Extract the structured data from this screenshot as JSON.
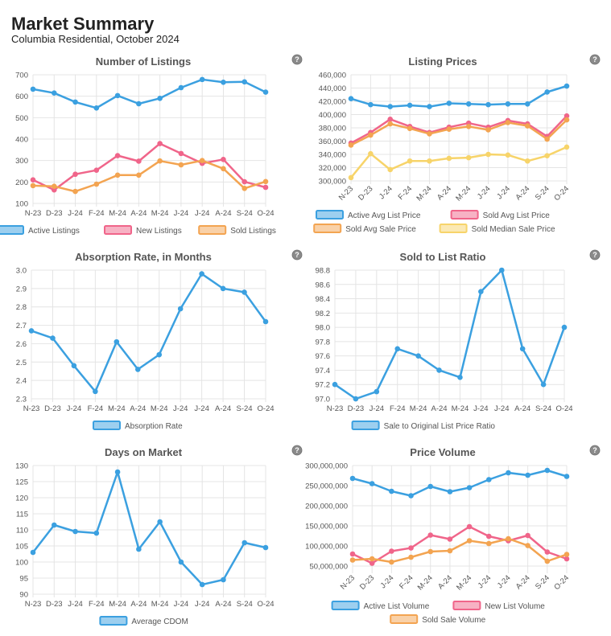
{
  "header": {
    "title": "Market Summary",
    "subtitle": "Columbia Residential, October 2024",
    "help_glyph": "?"
  },
  "icons": {
    "help": "help-icon"
  },
  "chart_data": [
    {
      "id": "listings",
      "type": "line",
      "title": "Number of Listings",
      "categories": [
        "N-23",
        "D-23",
        "J-24",
        "F-24",
        "M-24",
        "A-24",
        "M-24",
        "J-24",
        "J-24",
        "A-24",
        "S-24",
        "O-24"
      ],
      "x_rotated": false,
      "ylim": [
        100,
        700
      ],
      "yticks": [
        "100",
        "200",
        "300",
        "400",
        "500",
        "600",
        "700"
      ],
      "yticks_values": [
        100,
        200,
        300,
        400,
        500,
        600,
        700
      ],
      "grid": true,
      "legend_position": "bottom",
      "series": [
        {
          "name": "Active Listings",
          "color": "#3ba0e0",
          "values": [
            633,
            615,
            573,
            545,
            603,
            565,
            590,
            640,
            678,
            665,
            667,
            619
          ]
        },
        {
          "name": "New Listings",
          "color": "#f0658a",
          "values": [
            210,
            163,
            236,
            255,
            323,
            297,
            379,
            333,
            287,
            305,
            201,
            175
          ]
        },
        {
          "name": "Sold Listings",
          "color": "#f3a451",
          "values": [
            183,
            180,
            156,
            190,
            232,
            232,
            298,
            280,
            300,
            262,
            170,
            202
          ]
        }
      ]
    },
    {
      "id": "prices",
      "type": "line",
      "title": "Listing Prices",
      "categories": [
        "N-23",
        "D-23",
        "J-24",
        "F-24",
        "M-24",
        "A-24",
        "M-24",
        "J-24",
        "J-24",
        "A-24",
        "S-24",
        "O-24"
      ],
      "x_rotated": true,
      "ylim": [
        300000,
        460000
      ],
      "yticks": [
        "300,000",
        "320,000",
        "340,000",
        "360,000",
        "380,000",
        "400,000",
        "420,000",
        "440,000",
        "460,000"
      ],
      "yticks_values": [
        300000,
        320000,
        340000,
        360000,
        380000,
        400000,
        420000,
        440000,
        460000
      ],
      "grid": true,
      "legend_position": "bottom",
      "series": [
        {
          "name": "Active Avg List Price",
          "color": "#3ba0e0",
          "values": [
            424000,
            415000,
            412000,
            414000,
            412000,
            417000,
            416000,
            415000,
            416000,
            416000,
            434000,
            443000
          ]
        },
        {
          "name": "Sold Avg List Price",
          "color": "#f0658a",
          "values": [
            357000,
            373000,
            393000,
            382000,
            373000,
            381000,
            387000,
            381000,
            391000,
            386000,
            367000,
            398000
          ]
        },
        {
          "name": "Sold Avg Sale Price",
          "color": "#f3a451",
          "values": [
            354000,
            369000,
            386000,
            379000,
            371000,
            378000,
            382000,
            377000,
            388000,
            383000,
            363000,
            392000
          ]
        },
        {
          "name": "Sold Median Sale Price",
          "color": "#f7d46a",
          "values": [
            305000,
            341000,
            317000,
            330000,
            330000,
            334000,
            335000,
            340000,
            339000,
            330000,
            338000,
            351000
          ]
        }
      ]
    },
    {
      "id": "absorption",
      "type": "line",
      "title": "Absorption Rate, in Months",
      "categories": [
        "N-23",
        "D-23",
        "J-24",
        "F-24",
        "M-24",
        "A-24",
        "M-24",
        "J-24",
        "J-24",
        "A-24",
        "S-24",
        "O-24"
      ],
      "x_rotated": false,
      "ylim": [
        2.3,
        3.0
      ],
      "yticks": [
        "2.3",
        "2.4",
        "2.5",
        "2.6",
        "2.7",
        "2.8",
        "2.9",
        "3.0"
      ],
      "yticks_values": [
        2.3,
        2.4,
        2.5,
        2.6,
        2.7,
        2.8,
        2.9,
        3.0
      ],
      "grid": true,
      "legend_position": "bottom",
      "series": [
        {
          "name": "Absorption Rate",
          "color": "#3ba0e0",
          "values": [
            2.67,
            2.63,
            2.48,
            2.34,
            2.61,
            2.46,
            2.54,
            2.79,
            2.98,
            2.9,
            2.88,
            2.72
          ]
        }
      ]
    },
    {
      "id": "sold_to_list",
      "type": "line",
      "title": "Sold to List Ratio",
      "categories": [
        "N-23",
        "D-23",
        "J-24",
        "F-24",
        "M-24",
        "A-24",
        "M-24",
        "J-24",
        "J-24",
        "A-24",
        "S-24",
        "O-24"
      ],
      "x_rotated": false,
      "ylim": [
        97.0,
        98.8
      ],
      "yticks": [
        "97.0",
        "97.2",
        "97.4",
        "97.6",
        "97.8",
        "98.0",
        "98.2",
        "98.4",
        "98.6",
        "98.8"
      ],
      "yticks_values": [
        97.0,
        97.2,
        97.4,
        97.6,
        97.8,
        98.0,
        98.2,
        98.4,
        98.6,
        98.8
      ],
      "grid": true,
      "legend_position": "bottom",
      "series": [
        {
          "name": "Sale to Original List Price Ratio",
          "color": "#3ba0e0",
          "values": [
            97.2,
            97.0,
            97.1,
            97.7,
            97.6,
            97.4,
            97.3,
            98.5,
            98.8,
            97.7,
            97.2,
            98.0
          ]
        }
      ]
    },
    {
      "id": "dom",
      "type": "line",
      "title": "Days on Market",
      "categories": [
        "N-23",
        "D-23",
        "J-24",
        "F-24",
        "M-24",
        "A-24",
        "M-24",
        "J-24",
        "J-24",
        "A-24",
        "S-24",
        "O-24"
      ],
      "x_rotated": false,
      "ylim": [
        90,
        130
      ],
      "yticks": [
        "90",
        "95",
        "100",
        "105",
        "110",
        "115",
        "120",
        "125",
        "130"
      ],
      "yticks_values": [
        90,
        95,
        100,
        105,
        110,
        115,
        120,
        125,
        130
      ],
      "grid": true,
      "legend_position": "bottom",
      "series": [
        {
          "name": "Average CDOM",
          "color": "#3ba0e0",
          "values": [
            103,
            111.5,
            109.5,
            109,
            128,
            104,
            112.5,
            100,
            93,
            94.5,
            106,
            104.5
          ]
        }
      ]
    },
    {
      "id": "volume",
      "type": "line",
      "title": "Price Volume",
      "categories": [
        "N-23",
        "D-23",
        "J-24",
        "F-24",
        "M-24",
        "A-24",
        "M-24",
        "J-24",
        "J-24",
        "A-24",
        "S-24",
        "O-24"
      ],
      "x_rotated": true,
      "ylim": [
        40000000,
        300000000
      ],
      "yticks": [
        "50,000,000",
        "100,000,000",
        "150,000,000",
        "200,000,000",
        "250,000,000",
        "300,000,000"
      ],
      "yticks_values": [
        50000000,
        100000000,
        150000000,
        200000000,
        250000000,
        300000000
      ],
      "grid": true,
      "legend_position": "bottom",
      "series": [
        {
          "name": "Active List Volume",
          "color": "#3ba0e0",
          "values": [
            268000000,
            255000000,
            236000000,
            225000000,
            248000000,
            235000000,
            245000000,
            265000000,
            282000000,
            276000000,
            288000000,
            273000000
          ]
        },
        {
          "name": "New List Volume",
          "color": "#f0658a",
          "values": [
            80000000,
            57000000,
            87000000,
            95000000,
            127000000,
            117000000,
            148000000,
            124000000,
            113000000,
            126000000,
            85000000,
            68000000
          ]
        },
        {
          "name": "Sold Sale Volume",
          "color": "#f3a451",
          "values": [
            65000000,
            68000000,
            60000000,
            72000000,
            86000000,
            88000000,
            113000000,
            106000000,
            118000000,
            101000000,
            62000000,
            79000000
          ]
        }
      ]
    }
  ]
}
